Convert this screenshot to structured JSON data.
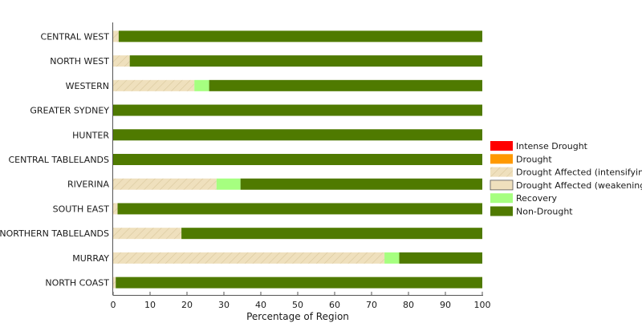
{
  "chart_data": {
    "type": "bar",
    "orientation": "horizontal",
    "stacked": true,
    "title": "",
    "xlabel": "Percentage of Region",
    "ylabel": "",
    "xlim": [
      0,
      100
    ],
    "xticks": [
      0,
      10,
      20,
      30,
      40,
      50,
      60,
      70,
      80,
      90,
      100
    ],
    "grid": false,
    "legend_position": "right",
    "categories": [
      "CENTRAL WEST",
      "NORTH WEST",
      "WESTERN",
      "GREATER SYDNEY",
      "HUNTER",
      "CENTRAL TABLELANDS",
      "RIVERINA",
      "SOUTH EAST",
      "NORTHERN TABLELANDS",
      "MURRAY",
      "NORTH COAST"
    ],
    "series": [
      {
        "name": "Intense Drought",
        "color": "#ff0000",
        "pattern": "solid",
        "values": [
          0,
          0,
          0,
          0,
          0,
          0,
          0,
          0,
          0,
          0,
          0
        ]
      },
      {
        "name": "Drought",
        "color": "#ff9900",
        "pattern": "solid",
        "values": [
          0,
          0,
          0,
          0,
          0,
          0,
          0,
          0,
          0,
          0,
          0
        ]
      },
      {
        "name": "Drought Affected (intensifying)",
        "color": "#efe0bd",
        "pattern": "hatch",
        "values": [
          1.5,
          4.5,
          22,
          0,
          0,
          0,
          28,
          1.2,
          18.5,
          73.5,
          0.7
        ]
      },
      {
        "name": "Drought Affected (weakening)",
        "color": "#efe0bd",
        "pattern": "solid",
        "values": [
          0,
          0,
          0,
          0,
          0,
          0,
          0,
          0,
          0,
          0,
          0
        ]
      },
      {
        "name": "Recovery",
        "color": "#a6ff80",
        "pattern": "solid",
        "values": [
          0,
          0,
          4,
          0,
          0,
          0,
          6.5,
          0,
          0,
          4,
          0
        ]
      },
      {
        "name": "Non-Drought",
        "color": "#4f7a00",
        "pattern": "solid",
        "values": [
          98.5,
          95.5,
          74,
          100,
          100,
          100,
          65.5,
          98.8,
          81.5,
          22.5,
          99.3
        ]
      }
    ]
  }
}
